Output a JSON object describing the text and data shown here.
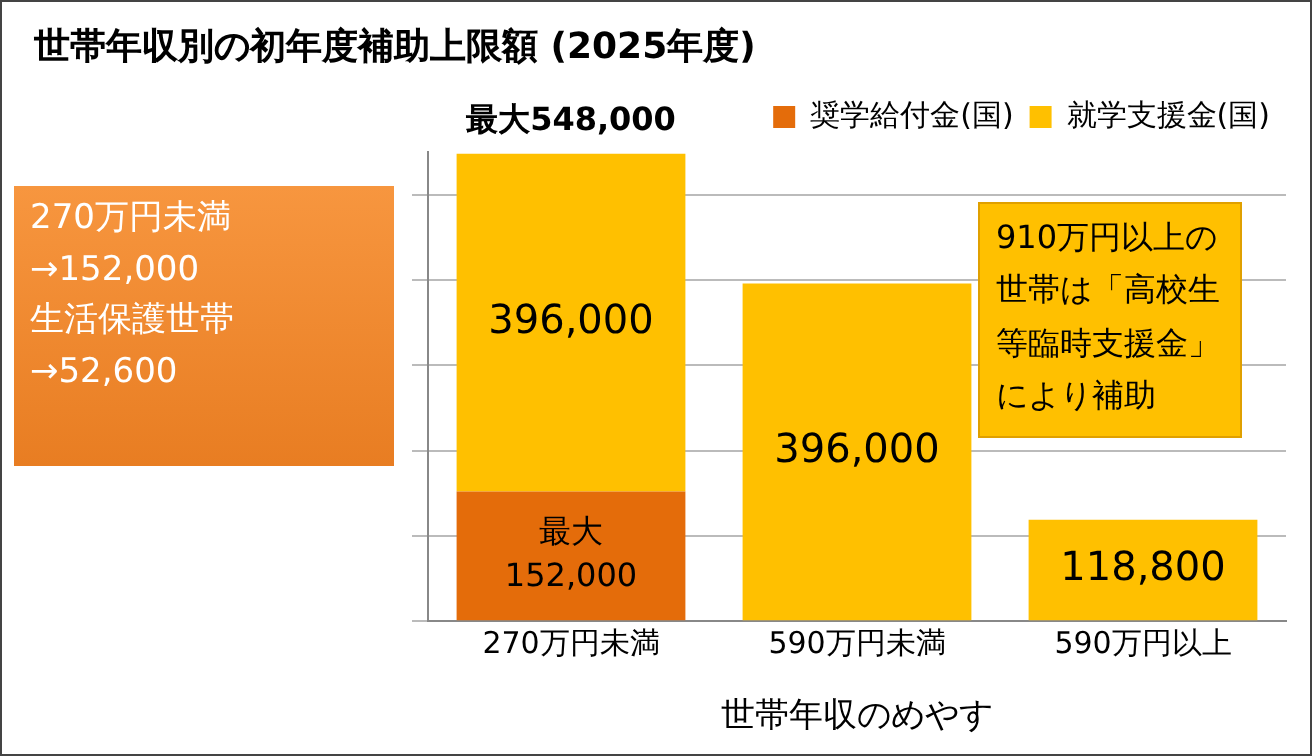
{
  "chart_data": {
    "type": "bar",
    "title": "世帯年収別の初年度補助上限額 (2025年度)",
    "xlabel": "世帯年収のめやす",
    "categories": [
      "270万円未満",
      "590万円未満",
      "590万円以上"
    ],
    "stacked": true,
    "series": [
      {
        "name": "奨学給付金(国)",
        "color": "#e46c0a",
        "values": [
          152000,
          null,
          null
        ],
        "value_labels": [
          "最大\n152,000",
          null,
          null
        ]
      },
      {
        "name": "就学支援金(国)",
        "color": "#ffc000",
        "values": [
          396000,
          396000,
          118800
        ],
        "value_labels": [
          "396,000",
          "396,000",
          "118,800"
        ]
      }
    ],
    "totals": [
      "最大548,000",
      null,
      null
    ],
    "ylim": [
      0,
      550000
    ],
    "yticks": [
      {
        "value": 0,
        "label": null
      },
      {
        "value": 100000,
        "label": null
      },
      {
        "value": 200000,
        "label": null
      },
      {
        "value": 300000,
        "label": null
      },
      {
        "value": 400000,
        "label": null
      },
      {
        "value": 500000,
        "label": null
      }
    ],
    "tick_labels": "x",
    "grid": "y",
    "legend": "top right",
    "annotations": [
      "270万円未満\n→152,000\n生活保護世帯\n→52,600",
      "910万円以上の世帯は「高校生等臨時支援金」により補助"
    ]
  }
}
